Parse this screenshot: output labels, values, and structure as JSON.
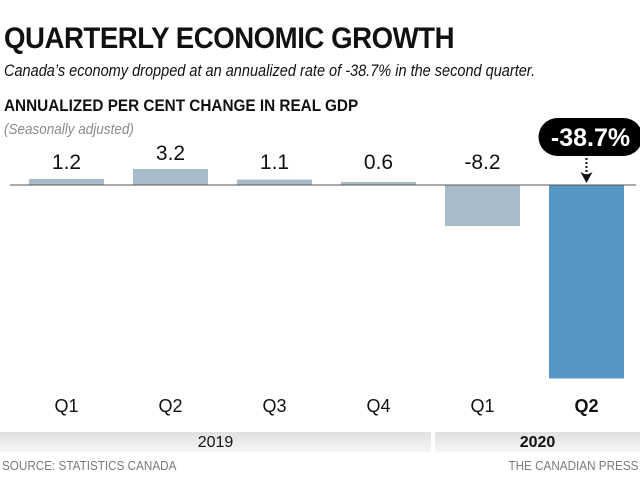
{
  "header": {
    "title": "QUARTERLY ECONOMIC GROWTH",
    "subtitle": "Canada’s economy dropped at an annualized rate of -38.7% in the second quarter.",
    "chart_title": "ANNUALIZED PER CENT CHANGE IN REAL GDP",
    "note": "(Seasonally adjusted)"
  },
  "footer": {
    "source": "SOURCE: STATISTICS CANADA",
    "credit": "THE CANADIAN PRESS"
  },
  "colors": {
    "bar": "#a7bcc8",
    "highlight": "#5497c6",
    "callout_bg": "#000000",
    "band": "#e8e9ea"
  },
  "chart_data": {
    "type": "bar",
    "title": "ANNUALIZED PER CENT CHANGE IN REAL GDP",
    "subtitle": "(Seasonally adjusted)",
    "categories": [
      "Q1",
      "Q2",
      "Q3",
      "Q4",
      "Q1",
      "Q2"
    ],
    "groups": [
      {
        "label": "2019",
        "span": 4,
        "bold": false
      },
      {
        "label": "2020",
        "span": 2,
        "bold": true
      }
    ],
    "values": [
      1.2,
      3.2,
      1.1,
      0.6,
      -8.2,
      -38.7
    ],
    "value_labels": [
      "1.2",
      "3.2",
      "1.1",
      "0.6",
      "-8.2",
      ""
    ],
    "highlight_index": 5,
    "callout": "-38.7%",
    "xlabel": "",
    "ylabel": "Annualized per cent change",
    "ylim": [
      -38.7,
      3.2
    ],
    "grid": false,
    "legend": "none"
  }
}
